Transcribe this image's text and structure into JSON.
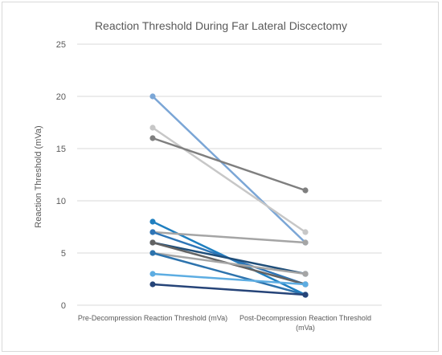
{
  "chart_data": {
    "type": "line",
    "title": "Reaction Threshold During Far Lateral Discectomy",
    "ylabel": "Reaction Threshold (mVa)",
    "xlabel": "",
    "categories": [
      [
        "Pre-Decompression Reaction Threshold (mVa)"
      ],
      [
        "Post-Decompression Reaction Threshold",
        "(mVa)"
      ]
    ],
    "ylim": [
      0,
      25
    ],
    "yticks": [
      0,
      5,
      10,
      15,
      20,
      25
    ],
    "grid": true,
    "legend": "none",
    "series": [
      {
        "values": [
          20,
          6
        ],
        "color": "#7ba6d6"
      },
      {
        "values": [
          17,
          7
        ],
        "color": "#c7c7c7"
      },
      {
        "values": [
          16,
          11
        ],
        "color": "#7f7f7f"
      },
      {
        "values": [
          8,
          1
        ],
        "color": "#1f7fc0"
      },
      {
        "values": [
          7,
          6
        ],
        "color": "#a5a5a5"
      },
      {
        "values": [
          7,
          2
        ],
        "color": "#2e75b6"
      },
      {
        "values": [
          6,
          3
        ],
        "color": "#1f4e79"
      },
      {
        "values": [
          6,
          2
        ],
        "color": "#636363"
      },
      {
        "values": [
          5,
          3
        ],
        "color": "#a5a5a5"
      },
      {
        "values": [
          5,
          1
        ],
        "color": "#2d73ad"
      },
      {
        "values": [
          3,
          2
        ],
        "color": "#5dade2"
      },
      {
        "values": [
          2,
          1
        ],
        "color": "#264478"
      }
    ]
  }
}
